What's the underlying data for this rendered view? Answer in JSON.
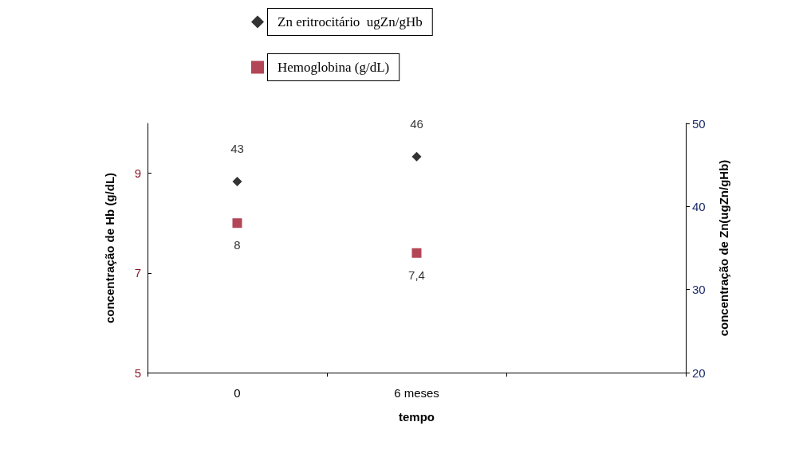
{
  "chart_data": {
    "type": "scatter",
    "xlabel": "tempo",
    "ylabel": "concentração de Hb (g/dL)",
    "y2label": "concentração de Zn(ugZn/gHb)",
    "categories": [
      "0",
      "6 meses",
      null
    ],
    "series": [
      {
        "name": "Zn eritrocitário  ugZn/gHb",
        "color": "#000000",
        "values": [
          43,
          46,
          null
        ],
        "axis": "y2",
        "marker": "diamond",
        "value_labels": [
          "43",
          "46",
          null
        ]
      },
      {
        "name": "Hemoglobina (g/dL)",
        "color": "#a0182c",
        "values": [
          8,
          7.4,
          null
        ],
        "marker": "square",
        "value_labels": [
          "8",
          "7,4",
          null
        ]
      }
    ],
    "ylim": [
      5,
      10
    ],
    "yticks": [
      5,
      7,
      9
    ],
    "y2lim": [
      20,
      50
    ],
    "y2ticks": [
      20,
      30,
      40,
      50
    ],
    "grid": false,
    "legend": "top"
  }
}
